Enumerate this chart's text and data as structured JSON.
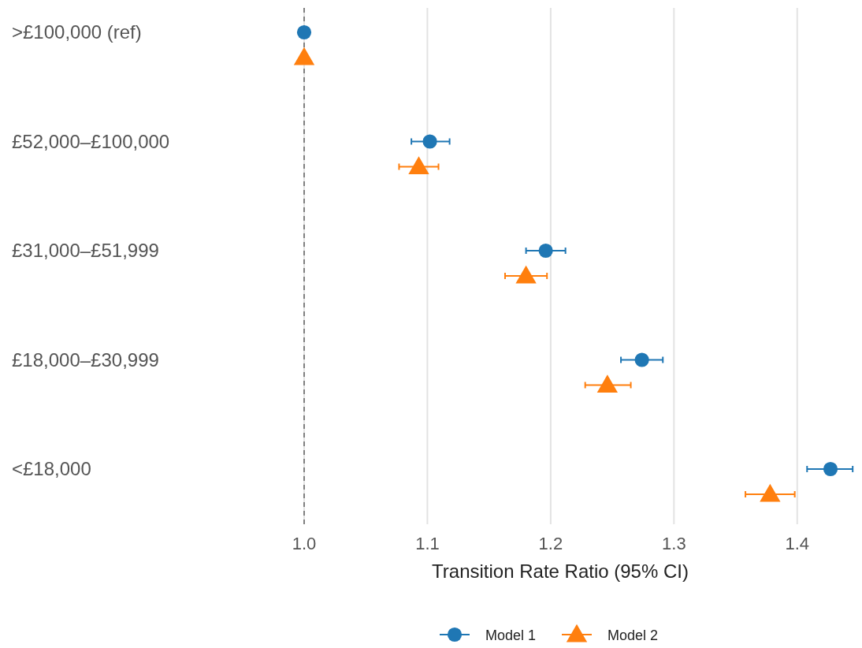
{
  "chart_data": {
    "type": "scatter",
    "orientation": "horizontal",
    "xlabel": "Transition Rate Ratio (95% CI)",
    "categories": [
      ">£100,000 (ref)",
      "£52,000–£100,000",
      "£31,000–£51,999",
      "£18,000–£30,999",
      "<£18,000"
    ],
    "series": [
      {
        "name": "Model 1",
        "color": "#1f77b4",
        "marker": "circle",
        "values": [
          1.0,
          1.102,
          1.196,
          1.274,
          1.427
        ],
        "errors": [
          null,
          [
            1.087,
            1.118
          ],
          [
            1.18,
            1.212
          ],
          [
            1.257,
            1.291
          ],
          [
            1.408,
            1.445
          ]
        ]
      },
      {
        "name": "Model 2",
        "color": "#ff7f0e",
        "marker": "triangle",
        "values": [
          1.0,
          1.093,
          1.18,
          1.246,
          1.378
        ],
        "errors": [
          null,
          [
            1.077,
            1.109
          ],
          [
            1.163,
            1.197
          ],
          [
            1.228,
            1.265
          ],
          [
            1.358,
            1.398
          ]
        ]
      }
    ],
    "xlim": [
      1.0,
      1.45
    ],
    "xticks": [
      {
        "value": 1,
        "label": "1.0"
      },
      {
        "value": 1.1,
        "label": "1.1"
      },
      {
        "value": 1.2,
        "label": "1.2"
      },
      {
        "value": 1.3,
        "label": "1.3"
      },
      {
        "value": 1.4,
        "label": "1.4"
      }
    ],
    "grid": "x",
    "legend": "bottom",
    "ref_lines": [
      {
        "axis": "x",
        "value": 1,
        "color": "#808080",
        "line_style": "dashed"
      }
    ]
  }
}
